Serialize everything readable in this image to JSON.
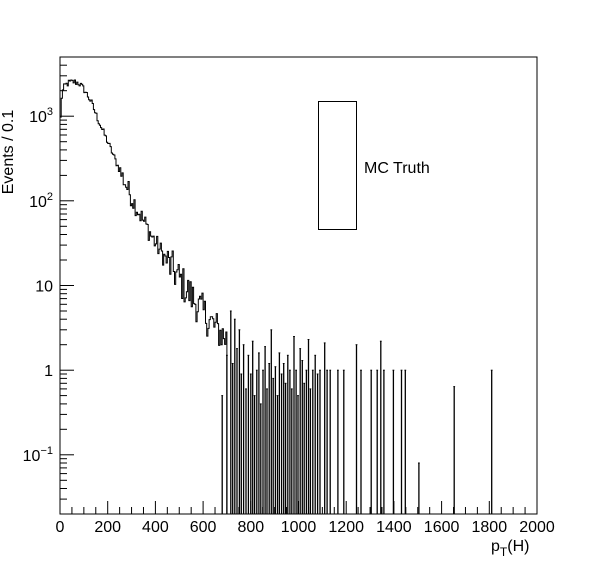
{
  "chart_data": {
    "type": "histogram",
    "title": "",
    "xlabel": "p",
    "xlabel_subscript": "T",
    "xlabel_suffix": "(H)",
    "ylabel": "Events / 0.1",
    "xlim": [
      0,
      2000
    ],
    "ylim": [
      0.02,
      5000
    ],
    "y_scale": "log",
    "grid": false,
    "x_ticks": [
      0,
      200,
      400,
      600,
      800,
      1000,
      1200,
      1400,
      1600,
      1800,
      2000
    ],
    "y_ticks": [
      {
        "value": 0.1,
        "base": "10",
        "exp": "−1"
      },
      {
        "value": 1,
        "label": "1"
      },
      {
        "value": 10,
        "label": "10"
      },
      {
        "value": 100,
        "base": "10",
        "exp": "2"
      },
      {
        "value": 1000,
        "base": "10",
        "exp": "3"
      }
    ],
    "legend": {
      "entry": "MC Truth",
      "position": "top-right"
    },
    "series": [
      {
        "line_color": "#000000",
        "bin_width": 5,
        "spectrum": [
          {
            "x": 0,
            "y": 600
          },
          {
            "x": 5,
            "y": 1500
          },
          {
            "x": 10,
            "y": 1900
          },
          {
            "x": 20,
            "y": 2300
          },
          {
            "x": 40,
            "y": 2500
          },
          {
            "x": 60,
            "y": 2550
          },
          {
            "x": 80,
            "y": 2450
          },
          {
            "x": 100,
            "y": 2100
          },
          {
            "x": 130,
            "y": 1500
          },
          {
            "x": 160,
            "y": 900
          },
          {
            "x": 200,
            "y": 500
          },
          {
            "x": 250,
            "y": 230
          },
          {
            "x": 300,
            "y": 110
          },
          {
            "x": 350,
            "y": 58
          },
          {
            "x": 400,
            "y": 32
          },
          {
            "x": 450,
            "y": 19
          },
          {
            "x": 500,
            "y": 12
          },
          {
            "x": 550,
            "y": 7.5
          },
          {
            "x": 600,
            "y": 4.8
          },
          {
            "x": 650,
            "y": 3.2
          },
          {
            "x": 700,
            "y": 2.3
          },
          {
            "x": 750,
            "y": 1.6
          },
          {
            "x": 800,
            "y": 1.2
          },
          {
            "x": 860,
            "y": 0.9
          },
          {
            "x": 920,
            "y": 0.8
          }
        ],
        "spikes": [
          {
            "x": 680,
            "y": 0.5
          },
          {
            "x": 700,
            "y": 1.5
          },
          {
            "x": 716,
            "y": 5
          },
          {
            "x": 724,
            "y": 1.2
          },
          {
            "x": 733,
            "y": 4
          },
          {
            "x": 742,
            "y": 1.8
          },
          {
            "x": 752,
            "y": 3
          },
          {
            "x": 760,
            "y": 0.9
          },
          {
            "x": 770,
            "y": 2
          },
          {
            "x": 780,
            "y": 0.6
          },
          {
            "x": 790,
            "y": 1.5
          },
          {
            "x": 800,
            "y": 0.9
          },
          {
            "x": 808,
            "y": 2.2
          },
          {
            "x": 816,
            "y": 0.5
          },
          {
            "x": 825,
            "y": 1
          },
          {
            "x": 834,
            "y": 1.6
          },
          {
            "x": 842,
            "y": 0.4
          },
          {
            "x": 851,
            "y": 1
          },
          {
            "x": 860,
            "y": 1.9
          },
          {
            "x": 868,
            "y": 0.6
          },
          {
            "x": 877,
            "y": 1.2
          },
          {
            "x": 886,
            "y": 3
          },
          {
            "x": 894,
            "y": 0.8
          },
          {
            "x": 903,
            "y": 1.1
          },
          {
            "x": 912,
            "y": 0.5
          },
          {
            "x": 920,
            "y": 1.6
          },
          {
            "x": 929,
            "y": 0.9
          },
          {
            "x": 938,
            "y": 1.2
          },
          {
            "x": 946,
            "y": 0.7
          },
          {
            "x": 955,
            "y": 1.5
          },
          {
            "x": 964,
            "y": 1
          },
          {
            "x": 972,
            "y": 0.6
          },
          {
            "x": 981,
            "y": 2.5
          },
          {
            "x": 990,
            "y": 1
          },
          {
            "x": 998,
            "y": 0.5
          },
          {
            "x": 1007,
            "y": 1.8
          },
          {
            "x": 1016,
            "y": 1.3
          },
          {
            "x": 1024,
            "y": 0.7
          },
          {
            "x": 1033,
            "y": 1
          },
          {
            "x": 1042,
            "y": 2.3
          },
          {
            "x": 1050,
            "y": 0.6
          },
          {
            "x": 1060,
            "y": 1
          },
          {
            "x": 1070,
            "y": 1.5
          },
          {
            "x": 1080,
            "y": 0.9
          },
          {
            "x": 1090,
            "y": 1
          },
          {
            "x": 1110,
            "y": 2.1
          },
          {
            "x": 1120,
            "y": 1
          },
          {
            "x": 1133,
            "y": 1
          },
          {
            "x": 1165,
            "y": 1
          },
          {
            "x": 1190,
            "y": 1
          },
          {
            "x": 1243,
            "y": 2
          },
          {
            "x": 1262,
            "y": 1
          },
          {
            "x": 1305,
            "y": 1
          },
          {
            "x": 1330,
            "y": 1
          },
          {
            "x": 1345,
            "y": 2.2
          },
          {
            "x": 1358,
            "y": 1
          },
          {
            "x": 1398,
            "y": 1
          },
          {
            "x": 1432,
            "y": 1
          },
          {
            "x": 1448,
            "y": 1
          },
          {
            "x": 1505,
            "y": 0.08
          },
          {
            "x": 1653,
            "y": 0.64
          },
          {
            "x": 1810,
            "y": 1
          }
        ]
      }
    ]
  }
}
